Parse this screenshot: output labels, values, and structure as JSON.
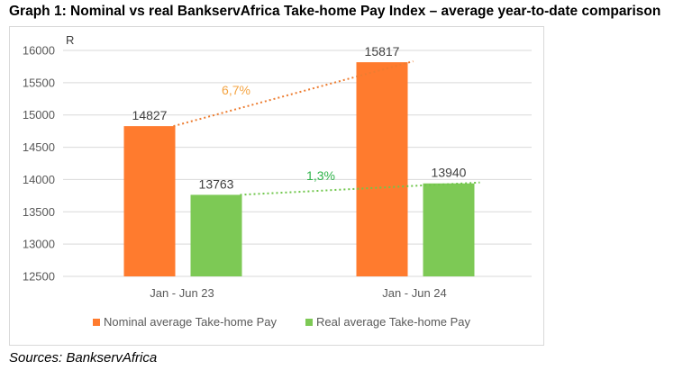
{
  "title": "Graph 1: Nominal vs real BankservAfrica Take-home Pay Index – average year-to-date comparison",
  "sources": "Sources: BankservAfrica",
  "colors": {
    "nominal": "#ff7b2e",
    "real": "#7dc955",
    "nominal_trend": "#ed7d31",
    "real_trend": "#70c64c",
    "nominal_text": "#f4a443",
    "real_text": "#2fb34a"
  },
  "chart_data": {
    "type": "bar",
    "unit_label": "R",
    "categories": [
      "Jan - Jun 23",
      "Jan - Jun 24"
    ],
    "series": [
      {
        "name": "Nominal average Take-home Pay",
        "values": [
          14827,
          15817
        ],
        "labels": [
          "14827",
          "15817"
        ]
      },
      {
        "name": "Real average Take-home Pay",
        "values": [
          13763,
          13940
        ],
        "labels": [
          "13763",
          "13940"
        ]
      }
    ],
    "ylim": [
      12500,
      16000
    ],
    "yticks": [
      "12500",
      "13000",
      "13500",
      "14000",
      "14500",
      "15000",
      "15500",
      "16000"
    ],
    "grid": true,
    "legend": "bottom",
    "annotations": [
      {
        "series": "Nominal average Take-home Pay",
        "text": "6,7%",
        "style": "dotted trendline"
      },
      {
        "series": "Real average Take-home Pay",
        "text": "1,3%",
        "style": "dotted trendline"
      }
    ]
  }
}
